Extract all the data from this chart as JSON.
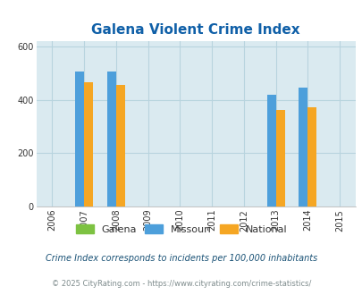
{
  "title": "Galena Violent Crime Index",
  "years": [
    2006,
    2007,
    2008,
    2009,
    2010,
    2011,
    2012,
    2013,
    2014,
    2015
  ],
  "data_years": [
    2007,
    2008,
    2013,
    2014
  ],
  "galena": [
    0,
    0,
    0,
    0
  ],
  "missouri": [
    507,
    507,
    420,
    445
  ],
  "national": [
    466,
    455,
    362,
    372
  ],
  "bar_width": 0.28,
  "ylim": [
    0,
    620
  ],
  "yticks": [
    0,
    200,
    400,
    600
  ],
  "colors": {
    "galena": "#7dc242",
    "missouri": "#4d9fdb",
    "national": "#f5a623"
  },
  "bg_color": "#daeaf0",
  "grid_color": "#b8d4de",
  "title_color": "#1060a8",
  "legend_labels": [
    "Galena",
    "Missouri",
    "National"
  ],
  "subtitle": "Crime Index corresponds to incidents per 100,000 inhabitants",
  "footer": "© 2025 CityRating.com - https://www.cityrating.com/crime-statistics/",
  "subtitle_color": "#1a5276",
  "footer_color": "#7f8c8d"
}
